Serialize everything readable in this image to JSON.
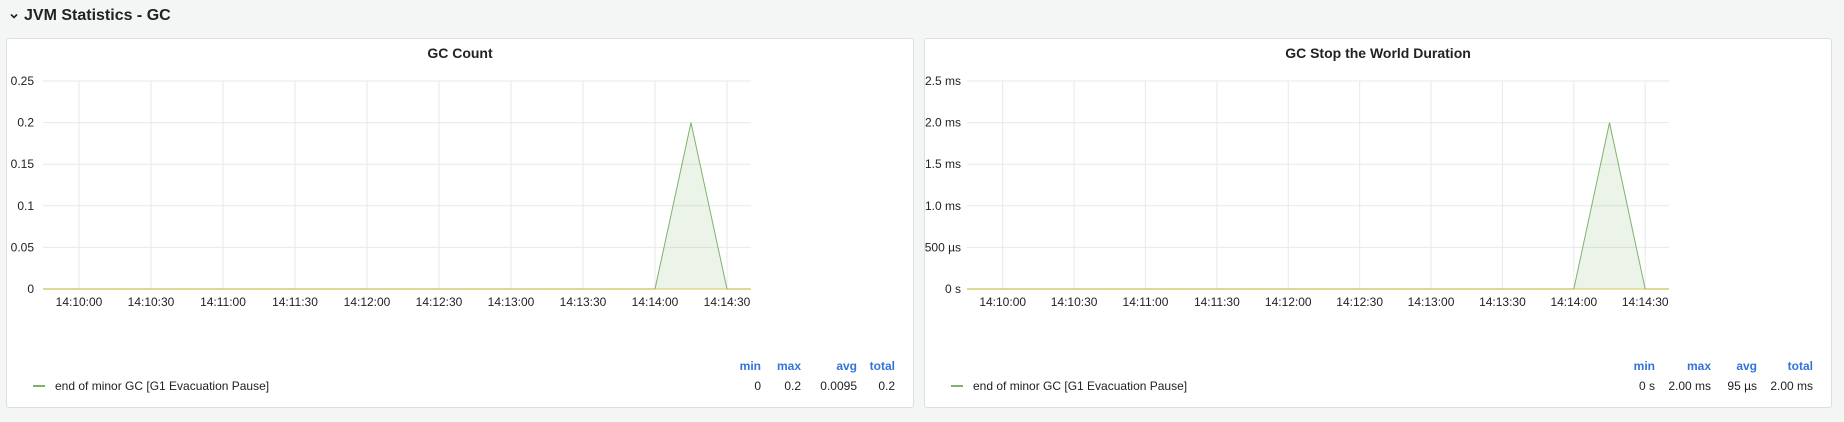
{
  "row": {
    "title": "JVM Statistics - GC"
  },
  "colors": {
    "series": "#7eb26d",
    "legend_head": "#3274d9",
    "grid": "#e8e9eb"
  },
  "legend": {
    "headers": [
      "min",
      "max",
      "avg",
      "total"
    ],
    "series_name": "end of minor GC [G1 Evacuation Pause]"
  },
  "panels": [
    {
      "title": "GC Count",
      "stats": [
        "0",
        "0.2",
        "0.0095",
        "0.2"
      ]
    },
    {
      "title": "GC Stop the World Duration",
      "stats": [
        "0 s",
        "2.00 ms",
        "95 µs",
        "2.00 ms"
      ]
    }
  ],
  "chart_data": [
    {
      "type": "area",
      "title": "GC Count",
      "x": [
        "14:09:45",
        "14:10:00",
        "14:10:30",
        "14:11:00",
        "14:11:30",
        "14:12:00",
        "14:12:30",
        "14:13:00",
        "14:13:30",
        "14:14:00",
        "14:14:15",
        "14:14:30",
        "14:14:40"
      ],
      "series": [
        {
          "name": "end of minor GC [G1 Evacuation Pause]",
          "values": [
            0,
            0,
            0,
            0,
            0,
            0,
            0,
            0,
            0,
            0,
            0.2,
            0,
            0
          ]
        }
      ],
      "x_ticks": [
        "14:10:00",
        "14:10:30",
        "14:11:00",
        "14:11:30",
        "14:12:00",
        "14:12:30",
        "14:13:00",
        "14:13:30",
        "14:14:00",
        "14:14:30"
      ],
      "y_ticks": [
        "0",
        "0.05",
        "0.1",
        "0.15",
        "0.2",
        "0.25"
      ],
      "ylim": [
        0,
        0.25
      ],
      "grid": true
    },
    {
      "type": "area",
      "title": "GC Stop the World Duration",
      "x": [
        "14:09:45",
        "14:10:00",
        "14:10:30",
        "14:11:00",
        "14:11:30",
        "14:12:00",
        "14:12:30",
        "14:13:00",
        "14:13:30",
        "14:14:00",
        "14:14:15",
        "14:14:30",
        "14:14:40"
      ],
      "series": [
        {
          "name": "end of minor GC [G1 Evacuation Pause]",
          "values": [
            0,
            0,
            0,
            0,
            0,
            0,
            0,
            0,
            0,
            0,
            2.0,
            0,
            0
          ]
        }
      ],
      "x_ticks": [
        "14:10:00",
        "14:10:30",
        "14:11:00",
        "14:11:30",
        "14:12:00",
        "14:12:30",
        "14:13:00",
        "14:13:30",
        "14:14:00",
        "14:14:30"
      ],
      "y_ticks": [
        "0 s",
        "500 µs",
        "1.0 ms",
        "1.5 ms",
        "2.0 ms",
        "2.5 ms"
      ],
      "ylim": [
        0,
        2.5
      ],
      "grid": true
    }
  ]
}
